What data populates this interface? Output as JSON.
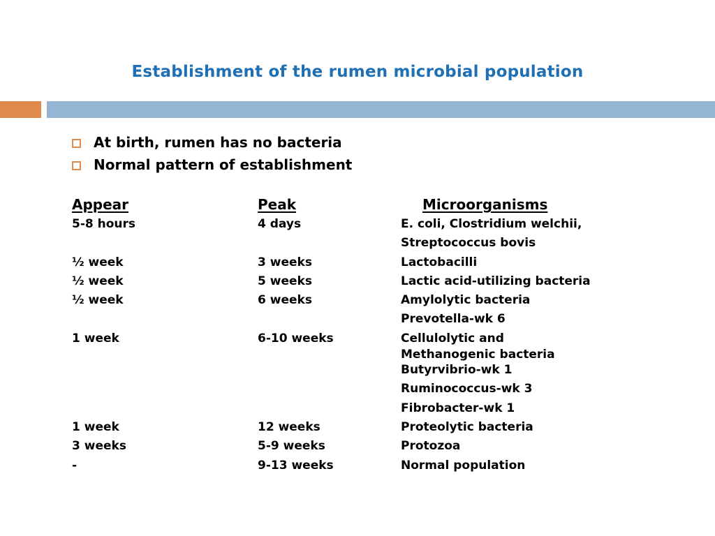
{
  "slide": {
    "title": "Establishment of the rumen microbial population",
    "colors": {
      "title": "#1f6fb5",
      "accent_bar": "#e08a4c",
      "main_bar": "#94b6d2",
      "bullet": "#e08a4c"
    }
  },
  "bullets": [
    {
      "text": "At birth, rumen has no bacteria",
      "icon": "square-bullet-icon"
    },
    {
      "text": "Normal pattern of establishment",
      "icon": "square-bullet-icon"
    }
  ],
  "table": {
    "headers": {
      "appear": "Appear",
      "peak": "Peak",
      "microorganisms": "Microorganisms"
    },
    "rows": [
      {
        "appear": "5-8 hours",
        "peak": "4 days",
        "microorganisms": [
          "E. coli, Clostridium welchii,",
          "Streptococcus bovis"
        ]
      },
      {
        "appear": "½ week",
        "peak": "3 weeks",
        "microorganisms": [
          "Lactobacilli"
        ]
      },
      {
        "appear": "½ week",
        "peak": "5 weeks",
        "microorganisms": [
          "Lactic acid-utilizing bacteria"
        ]
      },
      {
        "appear": "½ week",
        "peak": "6 weeks",
        "microorganisms": [
          "Amylolytic bacteria",
          "Prevotella-wk 6"
        ]
      },
      {
        "appear": "1 week",
        "peak": "6-10 weeks",
        "microorganisms": [
          "Cellulolytic and",
          "Methanogenic bacteria",
          "Butyrvibrio-wk 1",
          "Ruminococcus-wk 3",
          "Fibrobacter-wk 1"
        ]
      },
      {
        "appear": "1 week",
        "peak": "12 weeks",
        "microorganisms": [
          "Proteolytic bacteria"
        ]
      },
      {
        "appear": "3 weeks",
        "peak": "5-9 weeks",
        "microorganisms": [
          "Protozoa"
        ]
      },
      {
        "appear": "-",
        "peak": "9-13 weeks",
        "microorganisms": [
          "Normal population"
        ]
      }
    ]
  }
}
